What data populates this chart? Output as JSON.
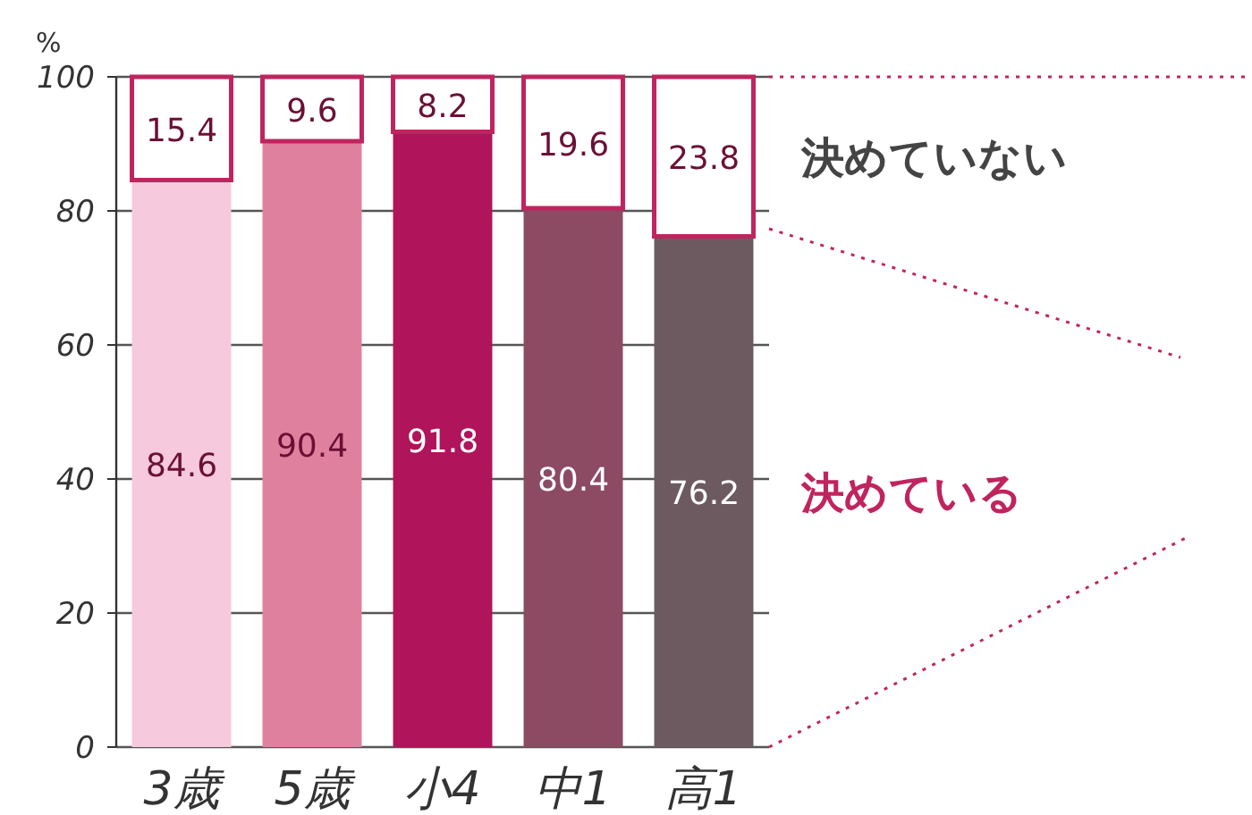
{
  "chart_data": {
    "type": "bar",
    "stacked": true,
    "ylabel": "%",
    "categories": [
      "3歳",
      "5歳",
      "小4",
      "中1",
      "高1"
    ],
    "series": [
      {
        "name": "決めている",
        "color": "#c0245f",
        "colors": [
          "#f6c9dd",
          "#e0809f",
          "#b0145a",
          "#8c4a63",
          "#6d5a60"
        ],
        "values": [
          84.6,
          90.4,
          91.8,
          80.4,
          76.2
        ]
      },
      {
        "name": "決めていない",
        "color": "#ffffff",
        "values": [
          15.4,
          9.6,
          8.2,
          19.6,
          23.8
        ]
      }
    ],
    "ylim": [
      0,
      100
    ],
    "yticks": [
      0,
      20,
      40,
      60,
      80,
      100
    ],
    "grid": "y",
    "legend": "right",
    "data_labels": true
  }
}
